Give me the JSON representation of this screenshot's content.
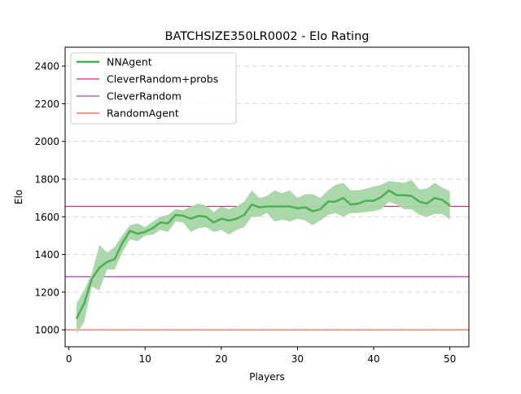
{
  "chart_data": {
    "type": "line",
    "title": "BATCHSIZE350LR0002 - Elo Rating",
    "xlabel": "Players",
    "ylabel": "Elo",
    "xlim": [
      -0.5,
      52.5
    ],
    "ylim": [
      910,
      2500
    ],
    "xticks": [
      0,
      10,
      20,
      30,
      40,
      50
    ],
    "yticks": [
      1000,
      1200,
      1400,
      1600,
      1800,
      2000,
      2200,
      2400
    ],
    "grid": "horizontal dashed",
    "legend_position": "top-left",
    "series": [
      {
        "name": "NNAgent",
        "color": "#4caf50",
        "band_color": "#a5d6a7",
        "x": [
          1,
          2,
          3,
          4,
          5,
          6,
          7,
          8,
          9,
          10,
          11,
          12,
          13,
          14,
          15,
          16,
          17,
          18,
          19,
          20,
          21,
          22,
          23,
          24,
          25,
          26,
          27,
          28,
          29,
          30,
          31,
          32,
          33,
          34,
          35,
          36,
          37,
          38,
          39,
          40,
          41,
          42,
          43,
          44,
          45,
          46,
          47,
          48,
          49,
          50
        ],
        "values": [
          1060,
          1140,
          1270,
          1330,
          1360,
          1375,
          1460,
          1525,
          1510,
          1520,
          1540,
          1570,
          1565,
          1610,
          1605,
          1590,
          1605,
          1600,
          1570,
          1590,
          1580,
          1590,
          1610,
          1665,
          1650,
          1655,
          1655,
          1655,
          1655,
          1645,
          1650,
          1630,
          1640,
          1680,
          1680,
          1700,
          1665,
          1670,
          1685,
          1685,
          1705,
          1740,
          1715,
          1715,
          1710,
          1680,
          1670,
          1700,
          1690,
          1660
        ],
        "upper": [
          1140,
          1210,
          1300,
          1450,
          1410,
          1440,
          1500,
          1555,
          1565,
          1545,
          1575,
          1600,
          1610,
          1640,
          1635,
          1655,
          1670,
          1660,
          1625,
          1655,
          1640,
          1655,
          1680,
          1740,
          1700,
          1710,
          1740,
          1725,
          1740,
          1700,
          1720,
          1720,
          1700,
          1740,
          1770,
          1780,
          1740,
          1740,
          1750,
          1760,
          1770,
          1790,
          1785,
          1780,
          1795,
          1745,
          1750,
          1780,
          1755,
          1735
        ],
        "lower": [
          980,
          1040,
          1230,
          1210,
          1320,
          1320,
          1410,
          1480,
          1470,
          1500,
          1505,
          1530,
          1520,
          1575,
          1570,
          1520,
          1540,
          1545,
          1520,
          1530,
          1505,
          1530,
          1545,
          1600,
          1600,
          1620,
          1575,
          1585,
          1575,
          1590,
          1580,
          1555,
          1580,
          1610,
          1620,
          1600,
          1620,
          1620,
          1625,
          1630,
          1640,
          1680,
          1665,
          1640,
          1640,
          1610,
          1600,
          1615,
          1615,
          1585
        ]
      },
      {
        "name": "CleverRandom+probs",
        "color": "#e0257a",
        "type": "hline",
        "value": 1655
      },
      {
        "name": "CleverRandom",
        "color": "#b03cbf",
        "type": "hline",
        "value": 1282
      },
      {
        "name": "RandomAgent",
        "color": "#f05a4a",
        "type": "hline",
        "value": 1000
      }
    ]
  }
}
